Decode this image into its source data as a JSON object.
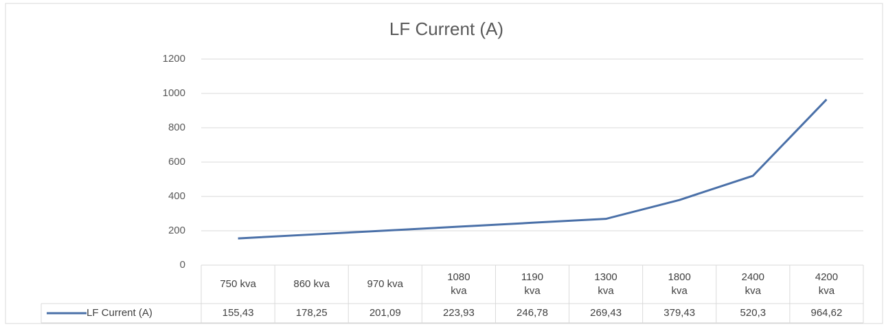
{
  "chart_data": {
    "type": "line",
    "title": "LF Current (A)",
    "categories": [
      "750 kva",
      "860 kva",
      "970 kva",
      "1080 kva",
      "1190 kva",
      "1300 kva",
      "1800 kva",
      "2400 kva",
      "4200 kva"
    ],
    "series": [
      {
        "name": "LF Current (A)",
        "color": "#4a70a8",
        "values": [
          155.43,
          178.25,
          201.09,
          223.93,
          246.78,
          269.43,
          379.43,
          520.3,
          964.62
        ],
        "value_labels": [
          "155,43",
          "178,25",
          "201,09",
          "223,93",
          "246,78",
          "269,43",
          "379,43",
          "520,3",
          "964,62"
        ]
      }
    ],
    "ylim": [
      0,
      1200
    ],
    "yticks": [
      0,
      200,
      400,
      600,
      800,
      1000,
      1200
    ],
    "grid": true
  }
}
